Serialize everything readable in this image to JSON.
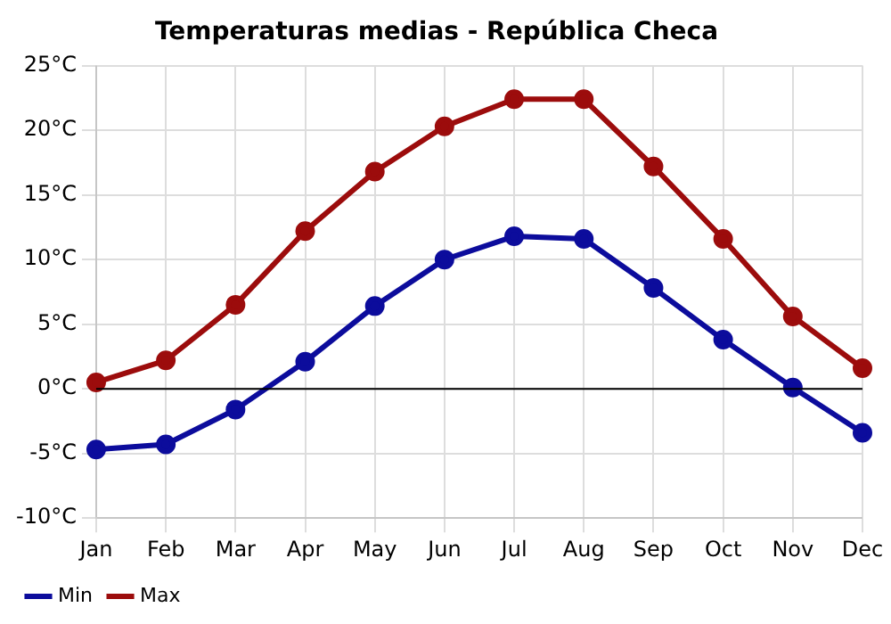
{
  "chart_data": {
    "type": "line",
    "title": "Temperaturas medias - República Checa",
    "categories": [
      "Jan",
      "Feb",
      "Mar",
      "Apr",
      "May",
      "Jun",
      "Jul",
      "Aug",
      "Sep",
      "Oct",
      "Nov",
      "Dec"
    ],
    "series": [
      {
        "name": "Min",
        "color": "#0c0c9c",
        "values": [
          -4.7,
          -4.3,
          -1.6,
          2.1,
          6.4,
          10.0,
          11.8,
          11.6,
          7.8,
          3.8,
          0.1,
          -3.4
        ]
      },
      {
        "name": "Max",
        "color": "#9c0c0c",
        "values": [
          0.5,
          2.2,
          6.5,
          12.2,
          16.8,
          20.3,
          22.4,
          22.4,
          17.2,
          11.6,
          5.6,
          1.6
        ]
      }
    ],
    "ylim": [
      -10,
      25
    ],
    "yticks": [
      {
        "value": -10,
        "label": "-10°C"
      },
      {
        "value": -5,
        "label": "-5°C"
      },
      {
        "value": 0,
        "label": "0°C"
      },
      {
        "value": 5,
        "label": "5°C"
      },
      {
        "value": 10,
        "label": "10°C"
      },
      {
        "value": 15,
        "label": "15°C"
      },
      {
        "value": 20,
        "label": "20°C"
      },
      {
        "value": 25,
        "label": "25°C"
      }
    ],
    "ref_lines": [
      {
        "axis": "y",
        "value": 0,
        "color": "#000000"
      }
    ],
    "grid": true,
    "legend": "bottom left",
    "marker": "circle",
    "line_style": "solid"
  }
}
